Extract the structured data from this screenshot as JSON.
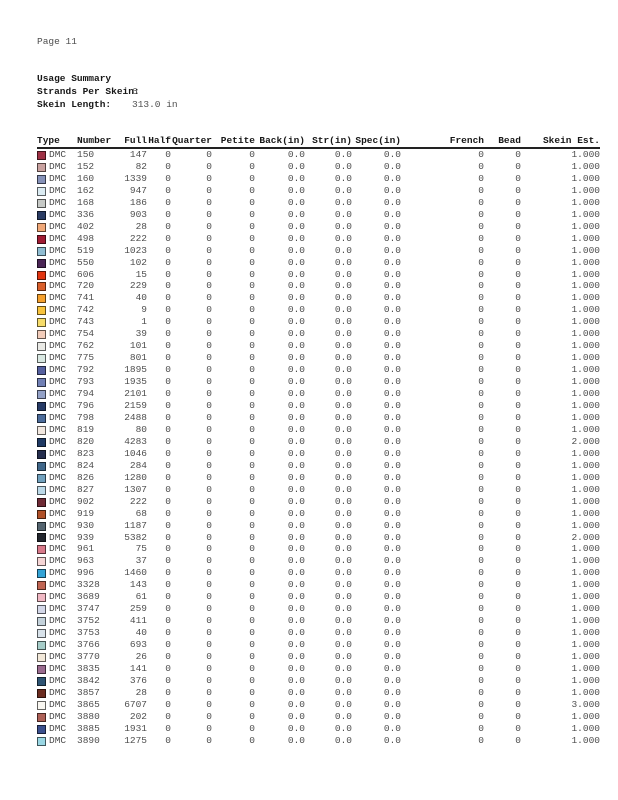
{
  "page": {
    "number_label": "Page 11"
  },
  "summary": {
    "title": "Usage Summary",
    "rows": [
      {
        "label": "Strands Per Skein:",
        "value": "6"
      },
      {
        "label": "Skein Length:",
        "value": "313.0 in"
      }
    ]
  },
  "table": {
    "columns": [
      {
        "key": "type",
        "label": "Type"
      },
      {
        "key": "number",
        "label": "Number"
      },
      {
        "key": "full",
        "label": "Full"
      },
      {
        "key": "half",
        "label": "Half"
      },
      {
        "key": "quarter",
        "label": "Quarter"
      },
      {
        "key": "petite",
        "label": "Petite"
      },
      {
        "key": "back_in",
        "label": "Back(in)"
      },
      {
        "key": "str_in",
        "label": "Str(in)"
      },
      {
        "key": "spec_in",
        "label": "Spec(in)"
      },
      {
        "key": "french",
        "label": "French"
      },
      {
        "key": "bead",
        "label": "Bead"
      },
      {
        "key": "skein_est",
        "label": "Skein Est."
      }
    ],
    "rows": [
      {
        "swatch_color": "#9e3044",
        "type": "DMC",
        "number": "150",
        "full": "147",
        "half": "0",
        "quarter": "0",
        "petite": "0",
        "back_in": "0.0",
        "str_in": "0.0",
        "spec_in": "0.0",
        "french": "0",
        "bead": "0",
        "skein_est": "1.000"
      },
      {
        "swatch_color": "#c9a2a0",
        "type": "DMC",
        "number": "152",
        "full": "82",
        "half": "0",
        "quarter": "0",
        "petite": "0",
        "back_in": "0.0",
        "str_in": "0.0",
        "spec_in": "0.0",
        "french": "0",
        "bead": "0",
        "skein_est": "1.000"
      },
      {
        "swatch_color": "#8591b8",
        "type": "DMC",
        "number": "160",
        "full": "1339",
        "half": "0",
        "quarter": "0",
        "petite": "0",
        "back_in": "0.0",
        "str_in": "0.0",
        "spec_in": "0.0",
        "french": "0",
        "bead": "0",
        "skein_est": "1.000"
      },
      {
        "swatch_color": "#dbebf2",
        "type": "DMC",
        "number": "162",
        "full": "947",
        "half": "0",
        "quarter": "0",
        "petite": "0",
        "back_in": "0.0",
        "str_in": "0.0",
        "spec_in": "0.0",
        "french": "0",
        "bead": "0",
        "skein_est": "1.000"
      },
      {
        "swatch_color": "#c6c9c6",
        "type": "DMC",
        "number": "168",
        "full": "186",
        "half": "0",
        "quarter": "0",
        "petite": "0",
        "back_in": "0.0",
        "str_in": "0.0",
        "spec_in": "0.0",
        "french": "0",
        "bead": "0",
        "skein_est": "1.000"
      },
      {
        "swatch_color": "#2a3b63",
        "type": "DMC",
        "number": "336",
        "full": "903",
        "half": "0",
        "quarter": "0",
        "petite": "0",
        "back_in": "0.0",
        "str_in": "0.0",
        "spec_in": "0.0",
        "french": "0",
        "bead": "0",
        "skein_est": "1.000"
      },
      {
        "swatch_color": "#f1a878",
        "type": "DMC",
        "number": "402",
        "full": "28",
        "half": "0",
        "quarter": "0",
        "petite": "0",
        "back_in": "0.0",
        "str_in": "0.0",
        "spec_in": "0.0",
        "french": "0",
        "bead": "0",
        "skein_est": "1.000"
      },
      {
        "swatch_color": "#a01b33",
        "type": "DMC",
        "number": "498",
        "full": "222",
        "half": "0",
        "quarter": "0",
        "petite": "0",
        "back_in": "0.0",
        "str_in": "0.0",
        "spec_in": "0.0",
        "french": "0",
        "bead": "0",
        "skein_est": "1.000"
      },
      {
        "swatch_color": "#90bdd2",
        "type": "DMC",
        "number": "519",
        "full": "1023",
        "half": "0",
        "quarter": "0",
        "petite": "0",
        "back_in": "0.0",
        "str_in": "0.0",
        "spec_in": "0.0",
        "french": "0",
        "bead": "0",
        "skein_est": "1.000"
      },
      {
        "swatch_color": "#4a2555",
        "type": "DMC",
        "number": "550",
        "full": "102",
        "half": "0",
        "quarter": "0",
        "petite": "0",
        "back_in": "0.0",
        "str_in": "0.0",
        "spec_in": "0.0",
        "french": "0",
        "bead": "0",
        "skein_est": "1.000"
      },
      {
        "swatch_color": "#e2340f",
        "type": "DMC",
        "number": "606",
        "full": "15",
        "half": "0",
        "quarter": "0",
        "petite": "0",
        "back_in": "0.0",
        "str_in": "0.0",
        "spec_in": "0.0",
        "french": "0",
        "bead": "0",
        "skein_est": "1.000"
      },
      {
        "swatch_color": "#d95f2b",
        "type": "DMC",
        "number": "720",
        "full": "229",
        "half": "0",
        "quarter": "0",
        "petite": "0",
        "back_in": "0.0",
        "str_in": "0.0",
        "spec_in": "0.0",
        "french": "0",
        "bead": "0",
        "skein_est": "1.000"
      },
      {
        "swatch_color": "#f5a02d",
        "type": "DMC",
        "number": "741",
        "full": "40",
        "half": "0",
        "quarter": "0",
        "petite": "0",
        "back_in": "0.0",
        "str_in": "0.0",
        "spec_in": "0.0",
        "french": "0",
        "bead": "0",
        "skein_est": "1.000"
      },
      {
        "swatch_color": "#f8c33c",
        "type": "DMC",
        "number": "742",
        "full": "9",
        "half": "0",
        "quarter": "0",
        "petite": "0",
        "back_in": "0.0",
        "str_in": "0.0",
        "spec_in": "0.0",
        "french": "0",
        "bead": "0",
        "skein_est": "1.000"
      },
      {
        "swatch_color": "#f6dc6a",
        "type": "DMC",
        "number": "743",
        "full": "1",
        "half": "0",
        "quarter": "0",
        "petite": "0",
        "back_in": "0.0",
        "str_in": "0.0",
        "spec_in": "0.0",
        "french": "0",
        "bead": "0",
        "skein_est": "1.000"
      },
      {
        "swatch_color": "#f2ccba",
        "type": "DMC",
        "number": "754",
        "full": "39",
        "half": "0",
        "quarter": "0",
        "petite": "0",
        "back_in": "0.0",
        "str_in": "0.0",
        "spec_in": "0.0",
        "french": "0",
        "bead": "0",
        "skein_est": "1.000"
      },
      {
        "swatch_color": "#e9e9e5",
        "type": "DMC",
        "number": "762",
        "full": "101",
        "half": "0",
        "quarter": "0",
        "petite": "0",
        "back_in": "0.0",
        "str_in": "0.0",
        "spec_in": "0.0",
        "french": "0",
        "bead": "0",
        "skein_est": "1.000"
      },
      {
        "swatch_color": "#d9e8e2",
        "type": "DMC",
        "number": "775",
        "full": "801",
        "half": "0",
        "quarter": "0",
        "petite": "0",
        "back_in": "0.0",
        "str_in": "0.0",
        "spec_in": "0.0",
        "french": "0",
        "bead": "0",
        "skein_est": "1.000"
      },
      {
        "swatch_color": "#55609f",
        "type": "DMC",
        "number": "792",
        "full": "1895",
        "half": "0",
        "quarter": "0",
        "petite": "0",
        "back_in": "0.0",
        "str_in": "0.0",
        "spec_in": "0.0",
        "french": "0",
        "bead": "0",
        "skein_est": "1.000"
      },
      {
        "swatch_color": "#7180b5",
        "type": "DMC",
        "number": "793",
        "full": "1935",
        "half": "0",
        "quarter": "0",
        "petite": "0",
        "back_in": "0.0",
        "str_in": "0.0",
        "spec_in": "0.0",
        "french": "0",
        "bead": "0",
        "skein_est": "1.000"
      },
      {
        "swatch_color": "#93a1c7",
        "type": "DMC",
        "number": "794",
        "full": "2101",
        "half": "0",
        "quarter": "0",
        "petite": "0",
        "back_in": "0.0",
        "str_in": "0.0",
        "spec_in": "0.0",
        "french": "0",
        "bead": "0",
        "skein_est": "1.000"
      },
      {
        "swatch_color": "#263a66",
        "type": "DMC",
        "number": "796",
        "full": "2159",
        "half": "0",
        "quarter": "0",
        "petite": "0",
        "back_in": "0.0",
        "str_in": "0.0",
        "spec_in": "0.0",
        "french": "0",
        "bead": "0",
        "skein_est": "1.000"
      },
      {
        "swatch_color": "#4c6c9b",
        "type": "DMC",
        "number": "798",
        "full": "2488",
        "half": "0",
        "quarter": "0",
        "petite": "0",
        "back_in": "0.0",
        "str_in": "0.0",
        "spec_in": "0.0",
        "french": "0",
        "bead": "0",
        "skein_est": "1.000"
      },
      {
        "swatch_color": "#f2e8e0",
        "type": "DMC",
        "number": "819",
        "full": "80",
        "half": "0",
        "quarter": "0",
        "petite": "0",
        "back_in": "0.0",
        "str_in": "0.0",
        "spec_in": "0.0",
        "french": "0",
        "bead": "0",
        "skein_est": "1.000"
      },
      {
        "swatch_color": "#1f3a64",
        "type": "DMC",
        "number": "820",
        "full": "4283",
        "half": "0",
        "quarter": "0",
        "petite": "0",
        "back_in": "0.0",
        "str_in": "0.0",
        "spec_in": "0.0",
        "french": "0",
        "bead": "0",
        "skein_est": "2.000"
      },
      {
        "swatch_color": "#252e4e",
        "type": "DMC",
        "number": "823",
        "full": "1046",
        "half": "0",
        "quarter": "0",
        "petite": "0",
        "back_in": "0.0",
        "str_in": "0.0",
        "spec_in": "0.0",
        "french": "0",
        "bead": "0",
        "skein_est": "1.000"
      },
      {
        "swatch_color": "#3f6689",
        "type": "DMC",
        "number": "824",
        "full": "284",
        "half": "0",
        "quarter": "0",
        "petite": "0",
        "back_in": "0.0",
        "str_in": "0.0",
        "spec_in": "0.0",
        "french": "0",
        "bead": "0",
        "skein_est": "1.000"
      },
      {
        "swatch_color": "#70a0bd",
        "type": "DMC",
        "number": "826",
        "full": "1280",
        "half": "0",
        "quarter": "0",
        "petite": "0",
        "back_in": "0.0",
        "str_in": "0.0",
        "spec_in": "0.0",
        "french": "0",
        "bead": "0",
        "skein_est": "1.000"
      },
      {
        "swatch_color": "#bcd9e8",
        "type": "DMC",
        "number": "827",
        "full": "1307",
        "half": "0",
        "quarter": "0",
        "petite": "0",
        "back_in": "0.0",
        "str_in": "0.0",
        "spec_in": "0.0",
        "french": "0",
        "bead": "0",
        "skein_est": "1.000"
      },
      {
        "swatch_color": "#6e2a35",
        "type": "DMC",
        "number": "902",
        "full": "222",
        "half": "0",
        "quarter": "0",
        "petite": "0",
        "back_in": "0.0",
        "str_in": "0.0",
        "spec_in": "0.0",
        "french": "0",
        "bead": "0",
        "skein_est": "1.000"
      },
      {
        "swatch_color": "#b05027",
        "type": "DMC",
        "number": "919",
        "full": "68",
        "half": "0",
        "quarter": "0",
        "petite": "0",
        "back_in": "0.0",
        "str_in": "0.0",
        "spec_in": "0.0",
        "french": "0",
        "bead": "0",
        "skein_est": "1.000"
      },
      {
        "swatch_color": "#54646f",
        "type": "DMC",
        "number": "930",
        "full": "1187",
        "half": "0",
        "quarter": "0",
        "petite": "0",
        "back_in": "0.0",
        "str_in": "0.0",
        "spec_in": "0.0",
        "french": "0",
        "bead": "0",
        "skein_est": "1.000"
      },
      {
        "swatch_color": "#23262e",
        "type": "DMC",
        "number": "939",
        "full": "5382",
        "half": "0",
        "quarter": "0",
        "petite": "0",
        "back_in": "0.0",
        "str_in": "0.0",
        "spec_in": "0.0",
        "french": "0",
        "bead": "0",
        "skein_est": "2.000"
      },
      {
        "swatch_color": "#d8798a",
        "type": "DMC",
        "number": "961",
        "full": "75",
        "half": "0",
        "quarter": "0",
        "petite": "0",
        "back_in": "0.0",
        "str_in": "0.0",
        "spec_in": "0.0",
        "french": "0",
        "bead": "0",
        "skein_est": "1.000"
      },
      {
        "swatch_color": "#f5d5d5",
        "type": "DMC",
        "number": "963",
        "full": "37",
        "half": "0",
        "quarter": "0",
        "petite": "0",
        "back_in": "0.0",
        "str_in": "0.0",
        "spec_in": "0.0",
        "french": "0",
        "bead": "0",
        "skein_est": "1.000"
      },
      {
        "swatch_color": "#33a3d6",
        "type": "DMC",
        "number": "996",
        "full": "1460",
        "half": "0",
        "quarter": "0",
        "petite": "0",
        "back_in": "0.0",
        "str_in": "0.0",
        "spec_in": "0.0",
        "french": "0",
        "bead": "0",
        "skein_est": "1.000"
      },
      {
        "swatch_color": "#c06452",
        "type": "DMC",
        "number": "3328",
        "full": "143",
        "half": "0",
        "quarter": "0",
        "petite": "0",
        "back_in": "0.0",
        "str_in": "0.0",
        "spec_in": "0.0",
        "french": "0",
        "bead": "0",
        "skein_est": "1.000"
      },
      {
        "swatch_color": "#f0b8c4",
        "type": "DMC",
        "number": "3689",
        "full": "61",
        "half": "0",
        "quarter": "0",
        "petite": "0",
        "back_in": "0.0",
        "str_in": "0.0",
        "spec_in": "0.0",
        "french": "0",
        "bead": "0",
        "skein_est": "1.000"
      },
      {
        "swatch_color": "#d3d7e8",
        "type": "DMC",
        "number": "3747",
        "full": "259",
        "half": "0",
        "quarter": "0",
        "petite": "0",
        "back_in": "0.0",
        "str_in": "0.0",
        "spec_in": "0.0",
        "french": "0",
        "bead": "0",
        "skein_est": "1.000"
      },
      {
        "swatch_color": "#c4d2db",
        "type": "DMC",
        "number": "3752",
        "full": "411",
        "half": "0",
        "quarter": "0",
        "petite": "0",
        "back_in": "0.0",
        "str_in": "0.0",
        "spec_in": "0.0",
        "french": "0",
        "bead": "0",
        "skein_est": "1.000"
      },
      {
        "swatch_color": "#d8e2ea",
        "type": "DMC",
        "number": "3753",
        "full": "40",
        "half": "0",
        "quarter": "0",
        "petite": "0",
        "back_in": "0.0",
        "str_in": "0.0",
        "spec_in": "0.0",
        "french": "0",
        "bead": "0",
        "skein_est": "1.000"
      },
      {
        "swatch_color": "#a6cdc9",
        "type": "DMC",
        "number": "3766",
        "full": "693",
        "half": "0",
        "quarter": "0",
        "petite": "0",
        "back_in": "0.0",
        "str_in": "0.0",
        "spec_in": "0.0",
        "french": "0",
        "bead": "0",
        "skein_est": "1.000"
      },
      {
        "swatch_color": "#f2e8d9",
        "type": "DMC",
        "number": "3770",
        "full": "26",
        "half": "0",
        "quarter": "0",
        "petite": "0",
        "back_in": "0.0",
        "str_in": "0.0",
        "spec_in": "0.0",
        "french": "0",
        "bead": "0",
        "skein_est": "1.000"
      },
      {
        "swatch_color": "#9a6b8f",
        "type": "DMC",
        "number": "3835",
        "full": "141",
        "half": "0",
        "quarter": "0",
        "petite": "0",
        "back_in": "0.0",
        "str_in": "0.0",
        "spec_in": "0.0",
        "french": "0",
        "bead": "0",
        "skein_est": "1.000"
      },
      {
        "swatch_color": "#2f5574",
        "type": "DMC",
        "number": "3842",
        "full": "376",
        "half": "0",
        "quarter": "0",
        "petite": "0",
        "back_in": "0.0",
        "str_in": "0.0",
        "spec_in": "0.0",
        "french": "0",
        "bead": "0",
        "skein_est": "1.000"
      },
      {
        "swatch_color": "#6b2c20",
        "type": "DMC",
        "number": "3857",
        "full": "28",
        "half": "0",
        "quarter": "0",
        "petite": "0",
        "back_in": "0.0",
        "str_in": "0.0",
        "spec_in": "0.0",
        "french": "0",
        "bead": "0",
        "skein_est": "1.000"
      },
      {
        "swatch_color": "#f9f7f1",
        "type": "DMC",
        "number": "3865",
        "full": "6707",
        "half": "0",
        "quarter": "0",
        "petite": "0",
        "back_in": "0.0",
        "str_in": "0.0",
        "spec_in": "0.0",
        "french": "0",
        "bead": "0",
        "skein_est": "3.000"
      },
      {
        "swatch_color": "#ad6057",
        "type": "DMC",
        "number": "3880",
        "full": "202",
        "half": "0",
        "quarter": "0",
        "petite": "0",
        "back_in": "0.0",
        "str_in": "0.0",
        "spec_in": "0.0",
        "french": "0",
        "bead": "0",
        "skein_est": "1.000"
      },
      {
        "swatch_color": "#3a4f8d",
        "type": "DMC",
        "number": "3885",
        "full": "1931",
        "half": "0",
        "quarter": "0",
        "petite": "0",
        "back_in": "0.0",
        "str_in": "0.0",
        "spec_in": "0.0",
        "french": "0",
        "bead": "0",
        "skein_est": "1.000"
      },
      {
        "swatch_color": "#9ad7e4",
        "type": "DMC",
        "number": "3890",
        "full": "1275",
        "half": "0",
        "quarter": "0",
        "petite": "0",
        "back_in": "0.0",
        "str_in": "0.0",
        "spec_in": "0.0",
        "french": "0",
        "bead": "0",
        "skein_est": "1.000"
      }
    ]
  }
}
